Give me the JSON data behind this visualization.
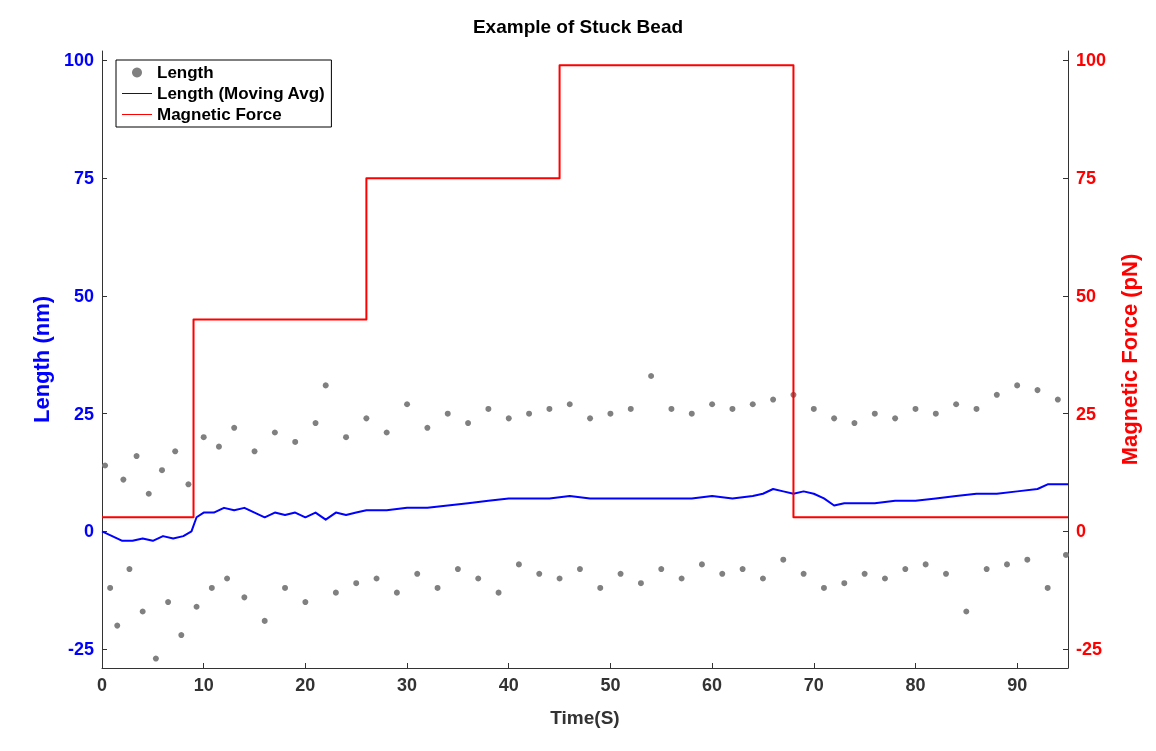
{
  "chart_data": {
    "type": "scatter",
    "title": "Example of Stuck Bead",
    "xlabel": "Time(S)",
    "ylabel": "Length (nm)",
    "y2label": "Magnetic Force (pN)",
    "xlim": [
      0,
      95
    ],
    "xticks": [
      0,
      10,
      20,
      30,
      40,
      50,
      60,
      70,
      80,
      90
    ],
    "ylim": [
      -29,
      102
    ],
    "yticks": [
      -25,
      0,
      25,
      50,
      75,
      100
    ],
    "y2lim": [
      -29,
      102
    ],
    "y2ticks": [
      -25,
      0,
      25,
      50,
      75,
      100
    ],
    "grid": false,
    "legend": "top left",
    "series": [
      {
        "name": "Length",
        "marker": "circle",
        "color": "#808080",
        "x": [
          0.3,
          0.8,
          1.5,
          2.1,
          2.7,
          3.4,
          4.0,
          4.6,
          5.3,
          5.9,
          6.5,
          7.2,
          7.8,
          8.5,
          9.3,
          10,
          10.8,
          11.5,
          12.3,
          13,
          14,
          15,
          16,
          17,
          18,
          19,
          20,
          21,
          22,
          23,
          24,
          25,
          26,
          27,
          28,
          29,
          30,
          31,
          32,
          33,
          34,
          35,
          36,
          37,
          38,
          39,
          40,
          41,
          42,
          43,
          44,
          45,
          46,
          47,
          48,
          49,
          50,
          51,
          52,
          53,
          54,
          55,
          56,
          57,
          58,
          59,
          60,
          61,
          62,
          63,
          64,
          65,
          66,
          67,
          68,
          69,
          70,
          71,
          72,
          73,
          74,
          75,
          76,
          77,
          78,
          79,
          80,
          81,
          82,
          83,
          84,
          85,
          86,
          87,
          88,
          89,
          90,
          91,
          92,
          93,
          94,
          94.8
        ],
        "values": [
          14,
          -12,
          -20,
          11,
          -8,
          16,
          -17,
          8,
          -27,
          13,
          -15,
          17,
          -22,
          10,
          -16,
          20,
          -12,
          18,
          -10,
          22,
          -14,
          17,
          -19,
          21,
          -12,
          19,
          -15,
          23,
          31,
          -13,
          20,
          -11,
          24,
          -10,
          21,
          -13,
          27,
          -9,
          22,
          -12,
          25,
          -8,
          23,
          -10,
          26,
          -13,
          24,
          -7,
          25,
          -9,
          26,
          -10,
          27,
          -8,
          24,
          -12,
          25,
          -9,
          26,
          -11,
          33,
          -8,
          26,
          -10,
          25,
          -7,
          27,
          -9,
          26,
          -8,
          27,
          -10,
          28,
          -6,
          29,
          -9,
          26,
          -12,
          24,
          -11,
          23,
          -9,
          25,
          -10,
          24,
          -8,
          26,
          -7,
          25,
          -9,
          27,
          -17,
          26,
          -8,
          29,
          -7,
          31,
          -6,
          30,
          -12,
          28,
          -5
        ]
      },
      {
        "name": "Length (Moving Avg)",
        "type": "line",
        "color": "#0000ff",
        "x": [
          0,
          1,
          2,
          3,
          4,
          5,
          6,
          7,
          8,
          8.8,
          9.3,
          10,
          11,
          12,
          13,
          14,
          15,
          16,
          17,
          18,
          19,
          20,
          21,
          22,
          23,
          24,
          25,
          26,
          28,
          30,
          32,
          34,
          36,
          38,
          40,
          42,
          44,
          46,
          48,
          50,
          52,
          54,
          56,
          58,
          60,
          62,
          64,
          65,
          66,
          67,
          68,
          69,
          70,
          71,
          72,
          73,
          74,
          76,
          78,
          80,
          82,
          84,
          86,
          88,
          90,
          92,
          93,
          94,
          95
        ],
        "values": [
          0,
          -1,
          -2,
          -2,
          -1.5,
          -2,
          -1,
          -1.5,
          -1,
          0,
          3,
          4,
          4,
          5,
          4.5,
          5,
          4,
          3,
          4,
          3.5,
          4,
          3,
          4,
          2.5,
          4,
          3.5,
          4,
          4.5,
          4.5,
          5,
          5,
          5.5,
          6,
          6.5,
          7,
          7,
          7,
          7.5,
          7,
          7,
          7,
          7,
          7,
          7,
          7.5,
          7,
          7.5,
          8,
          9,
          8.5,
          8,
          8.5,
          8,
          7,
          5.5,
          6,
          6,
          6,
          6.5,
          6.5,
          7,
          7.5,
          8,
          8,
          8.5,
          9,
          10,
          10,
          10
        ]
      },
      {
        "name": "Magnetic Force",
        "type": "step",
        "axis": "y2",
        "color": "#ff0000",
        "x": [
          0,
          9,
          26,
          45,
          68,
          95
        ],
        "values": [
          3,
          45,
          75,
          99,
          3,
          3
        ]
      }
    ]
  }
}
